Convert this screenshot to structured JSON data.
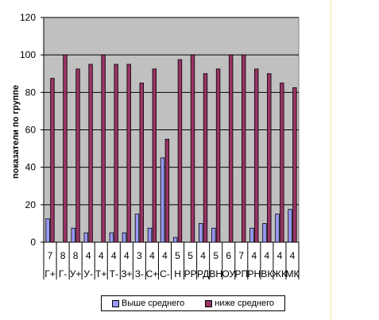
{
  "chart_data": {
    "type": "bar",
    "title": "",
    "xlabel": "",
    "ylabel": "показатели по группе",
    "ylim": [
      0,
      120
    ],
    "yticks": [
      0,
      20,
      40,
      60,
      80,
      100,
      120
    ],
    "grid": true,
    "legend_position": "bottom",
    "categories": [
      {
        "num": "7",
        "label": "Г+"
      },
      {
        "num": "8",
        "label": "Г-"
      },
      {
        "num": "8",
        "label": "У+"
      },
      {
        "num": "4",
        "label": "У-"
      },
      {
        "num": "4",
        "label": "Т+"
      },
      {
        "num": "4",
        "label": "Т-"
      },
      {
        "num": "4",
        "label": "З+"
      },
      {
        "num": "3",
        "label": "З-"
      },
      {
        "num": "4",
        "label": "С+"
      },
      {
        "num": "4",
        "label": "С-"
      },
      {
        "num": "5",
        "label": "Н"
      },
      {
        "num": "5",
        "label": "РР"
      },
      {
        "num": "4",
        "label": "РД"
      },
      {
        "num": "5",
        "label": "ВН"
      },
      {
        "num": "6",
        "label": "ОУ"
      },
      {
        "num": "7",
        "label": "РП"
      },
      {
        "num": "4",
        "label": "РН"
      },
      {
        "num": "4",
        "label": "ВК"
      },
      {
        "num": "4",
        "label": "ЖК"
      },
      {
        "num": "4",
        "label": "МК"
      }
    ],
    "series": [
      {
        "name": "Выше среднего",
        "color": "#9999ff",
        "values": [
          12.5,
          0,
          7.5,
          5,
          0,
          5,
          5,
          15,
          7.5,
          45,
          2.5,
          0,
          10,
          7.5,
          0,
          0,
          7.5,
          10,
          15,
          17.5
        ]
      },
      {
        "name": "ниже среднего",
        "color": "#993366",
        "values": [
          87.5,
          100,
          92.5,
          95,
          100,
          95,
          95,
          85,
          92.5,
          55,
          97.5,
          100,
          90,
          92.5,
          100,
          100,
          92.5,
          90,
          85,
          82.5
        ]
      }
    ],
    "plot_background": "#c0c0c0"
  }
}
